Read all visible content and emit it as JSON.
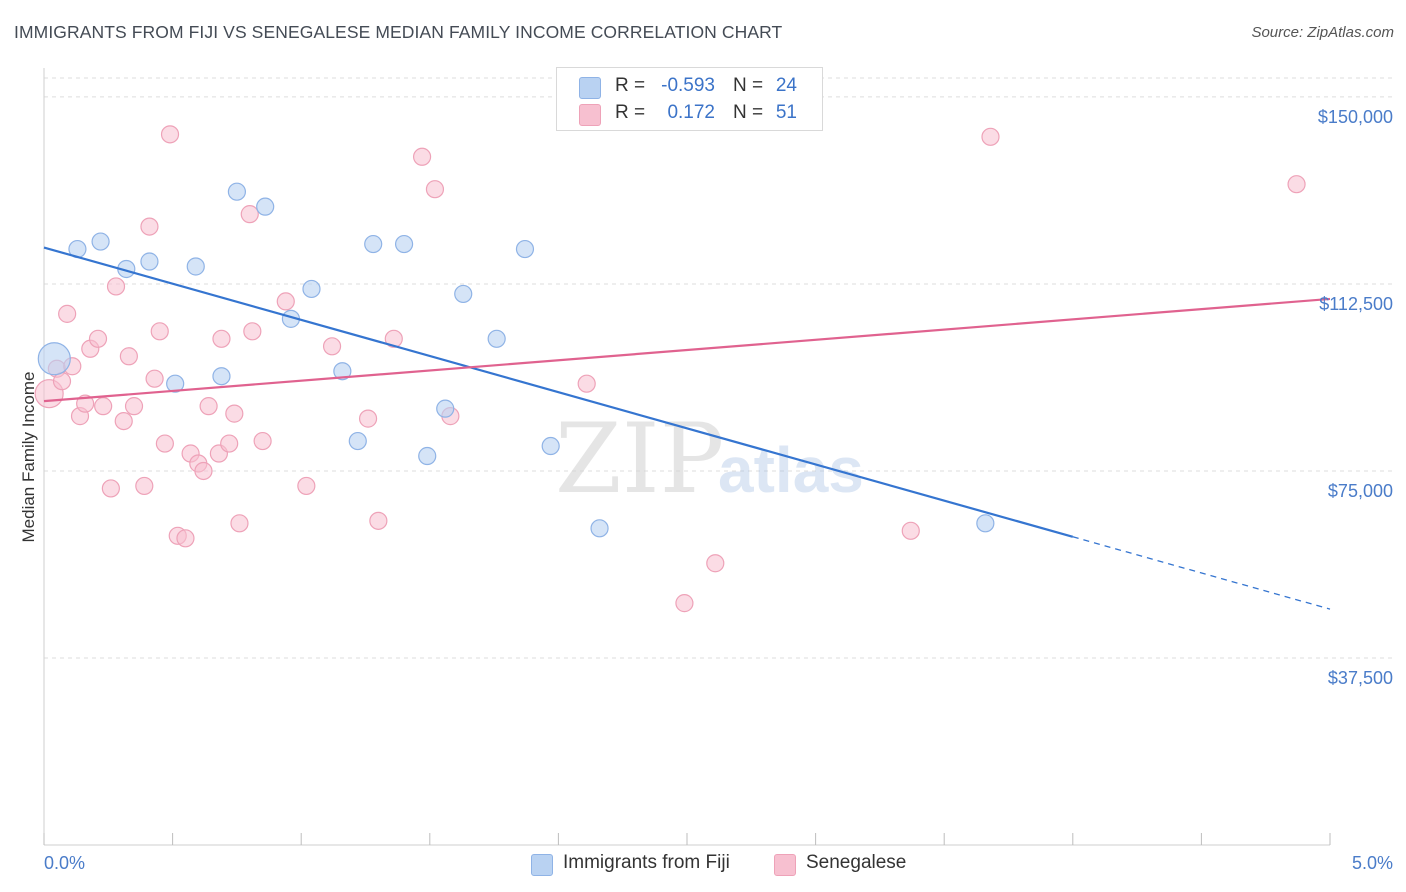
{
  "header": {
    "title": "IMMIGRANTS FROM FIJI VS SENEGALESE MEDIAN FAMILY INCOME CORRELATION CHART",
    "source": "Source: ZipAtlas.com"
  },
  "legend": {
    "rows": [
      {
        "r_label": "R =",
        "r_value": "-0.593",
        "n_label": "N =",
        "n_value": "24"
      },
      {
        "r_label": "R =",
        "r_value": "0.172",
        "n_label": "N =",
        "n_value": "51"
      }
    ]
  },
  "bottom_legend": {
    "items": [
      {
        "label": "Immigrants from Fiji"
      },
      {
        "label": "Senegalese"
      }
    ]
  },
  "watermark": {
    "zip": "ZIP",
    "atlas": "atlas"
  },
  "colors": {
    "fiji_fill": "#b9d2f2",
    "fiji_stroke": "#8fb3e6",
    "fiji_line": "#3575d0",
    "seneg_fill": "#f7c0d0",
    "seneg_stroke": "#eea2b8",
    "seneg_line": "#e0628f",
    "tick_text": "#4a7cc9",
    "grid": "#dedede"
  },
  "chart_data": {
    "type": "scatter",
    "title": "IMMIGRANTS FROM FIJI VS SENEGALESE MEDIAN FAMILY INCOME CORRELATION CHART",
    "xlabel": "",
    "ylabel": "Median Family Income",
    "xlim": [
      0.0,
      5.0
    ],
    "ylim": [
      0,
      155000
    ],
    "x_tick_labels": [
      "0.0%",
      "5.0%"
    ],
    "y_ticks": [
      37500,
      75000,
      112500,
      150000
    ],
    "y_tick_labels": [
      "$37,500",
      "$75,000",
      "$112,500",
      "$150,000"
    ],
    "grid": true,
    "legend_position": "top-center",
    "series": [
      {
        "name": "Immigrants from Fiji",
        "r": -0.593,
        "n": 24,
        "points": [
          {
            "x": 0.04,
            "y": 97500,
            "big": true
          },
          {
            "x": 0.13,
            "y": 119500
          },
          {
            "x": 0.22,
            "y": 121000
          },
          {
            "x": 0.32,
            "y": 115500
          },
          {
            "x": 0.41,
            "y": 117000
          },
          {
            "x": 0.51,
            "y": 92500
          },
          {
            "x": 0.59,
            "y": 116000
          },
          {
            "x": 0.69,
            "y": 94000
          },
          {
            "x": 0.75,
            "y": 131000
          },
          {
            "x": 0.86,
            "y": 128000
          },
          {
            "x": 0.96,
            "y": 105500
          },
          {
            "x": 1.04,
            "y": 111500
          },
          {
            "x": 1.16,
            "y": 95000
          },
          {
            "x": 1.22,
            "y": 81000
          },
          {
            "x": 1.28,
            "y": 120500
          },
          {
            "x": 1.4,
            "y": 120500
          },
          {
            "x": 1.49,
            "y": 78000
          },
          {
            "x": 1.56,
            "y": 87500
          },
          {
            "x": 1.63,
            "y": 110500
          },
          {
            "x": 1.76,
            "y": 101500
          },
          {
            "x": 1.87,
            "y": 119500
          },
          {
            "x": 1.97,
            "y": 80000
          },
          {
            "x": 2.16,
            "y": 63500
          },
          {
            "x": 3.66,
            "y": 64500
          }
        ],
        "trend": {
          "x0": 0.0,
          "y0": 119800,
          "x1": 4.0,
          "y1": 61800,
          "dash_to_x": 5.0,
          "dash_to_y": 47300
        }
      },
      {
        "name": "Senegalese",
        "r": 0.172,
        "n": 51,
        "points": [
          {
            "x": 0.02,
            "y": 90500,
            "big": true
          },
          {
            "x": 0.05,
            "y": 95500
          },
          {
            "x": 0.07,
            "y": 93000
          },
          {
            "x": 0.09,
            "y": 106500
          },
          {
            "x": 0.11,
            "y": 96000
          },
          {
            "x": 0.14,
            "y": 86000
          },
          {
            "x": 0.16,
            "y": 88500
          },
          {
            "x": 0.18,
            "y": 99500
          },
          {
            "x": 0.21,
            "y": 101500
          },
          {
            "x": 0.23,
            "y": 88000
          },
          {
            "x": 0.26,
            "y": 71500
          },
          {
            "x": 0.28,
            "y": 112000
          },
          {
            "x": 0.31,
            "y": 85000
          },
          {
            "x": 0.33,
            "y": 98000
          },
          {
            "x": 0.35,
            "y": 88000
          },
          {
            "x": 0.39,
            "y": 72000
          },
          {
            "x": 0.41,
            "y": 124000
          },
          {
            "x": 0.43,
            "y": 93500
          },
          {
            "x": 0.45,
            "y": 103000
          },
          {
            "x": 0.47,
            "y": 80500
          },
          {
            "x": 0.49,
            "y": 142500
          },
          {
            "x": 0.52,
            "y": 62000
          },
          {
            "x": 0.55,
            "y": 61500
          },
          {
            "x": 0.57,
            "y": 78500
          },
          {
            "x": 0.6,
            "y": 76500
          },
          {
            "x": 0.62,
            "y": 75000
          },
          {
            "x": 0.64,
            "y": 88000
          },
          {
            "x": 0.68,
            "y": 78500
          },
          {
            "x": 0.69,
            "y": 101500
          },
          {
            "x": 0.72,
            "y": 80500
          },
          {
            "x": 0.74,
            "y": 86500
          },
          {
            "x": 0.76,
            "y": 64500
          },
          {
            "x": 0.8,
            "y": 126500
          },
          {
            "x": 0.81,
            "y": 103000
          },
          {
            "x": 0.85,
            "y": 81000
          },
          {
            "x": 0.94,
            "y": 109000
          },
          {
            "x": 1.02,
            "y": 72000
          },
          {
            "x": 1.12,
            "y": 100000
          },
          {
            "x": 1.26,
            "y": 85500
          },
          {
            "x": 1.3,
            "y": 65000
          },
          {
            "x": 1.36,
            "y": 101500
          },
          {
            "x": 1.47,
            "y": 138000
          },
          {
            "x": 1.52,
            "y": 131500
          },
          {
            "x": 1.58,
            "y": 86000
          },
          {
            "x": 2.11,
            "y": 92500
          },
          {
            "x": 2.17,
            "y": 145500
          },
          {
            "x": 2.49,
            "y": 48500
          },
          {
            "x": 2.61,
            "y": 56500
          },
          {
            "x": 3.37,
            "y": 63000
          },
          {
            "x": 3.68,
            "y": 142000
          },
          {
            "x": 4.87,
            "y": 132500
          }
        ],
        "trend": {
          "x0": 0.0,
          "y0": 89000,
          "x1": 5.0,
          "y1": 109500
        }
      }
    ]
  }
}
